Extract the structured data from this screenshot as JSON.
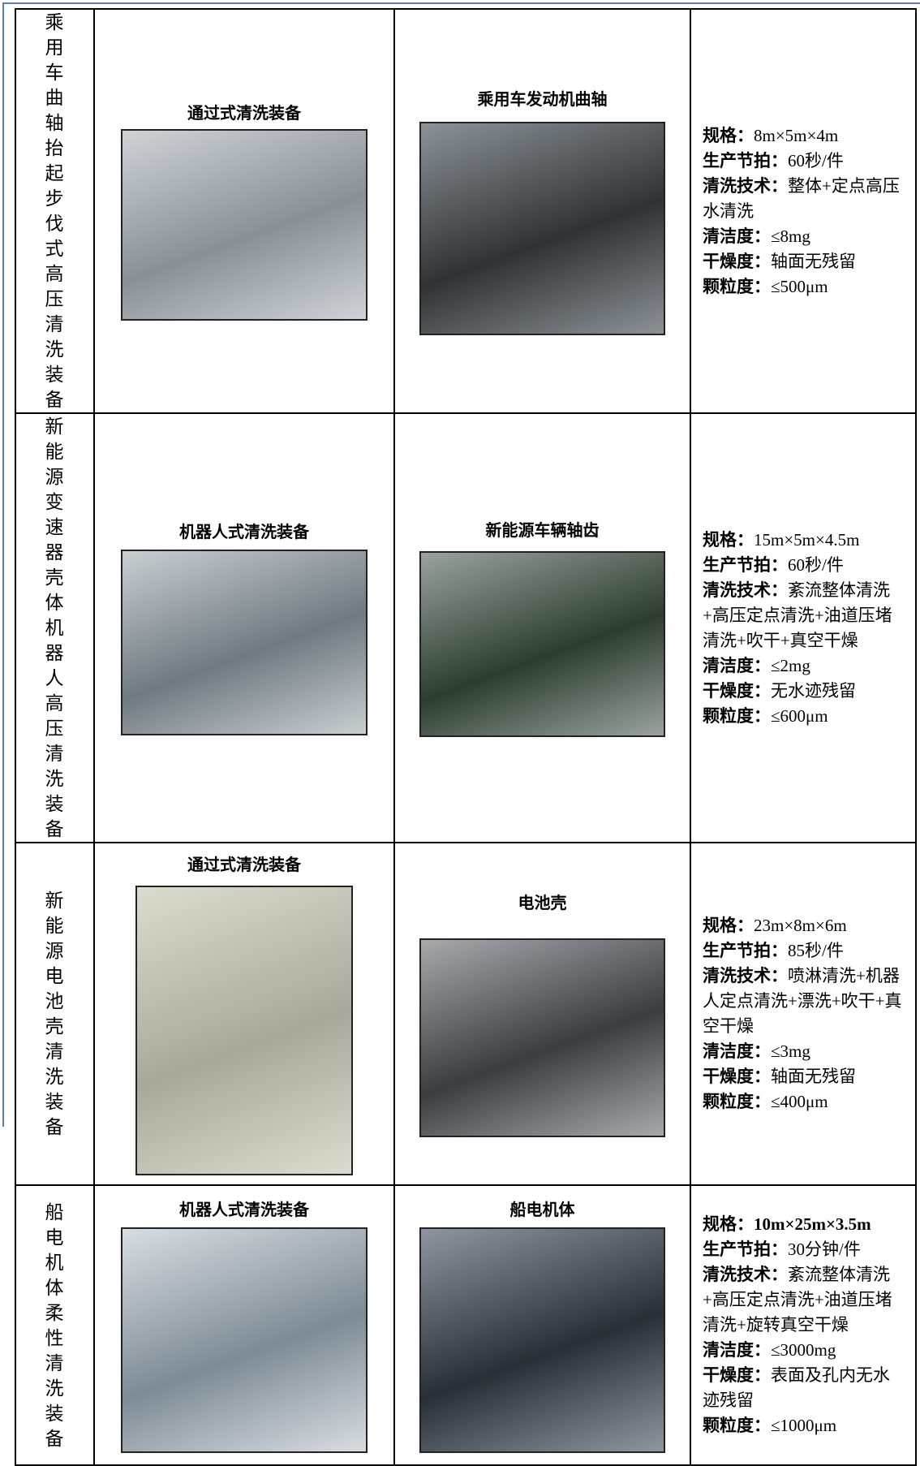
{
  "table": {
    "rows": [
      {
        "name": "乘用车曲轴抬起步伐式高压清洗装备",
        "equipment": "通过式清洗装备",
        "part": "乘用车发动机曲轴",
        "specs": [
          {
            "label": "规格：",
            "value": "8m×5m×4m"
          },
          {
            "label": "生产节拍：",
            "value": "60秒/件"
          },
          {
            "label": "清洗技术：",
            "value": "整体+定点高压水清洗"
          },
          {
            "label": "清洁度：",
            "value": "≤8mg"
          },
          {
            "label": "干燥度：",
            "value": "轴面无残留"
          },
          {
            "label": "颗粒度：",
            "value": "≤500μm"
          }
        ]
      },
      {
        "name": "新能源变速器壳体机器人高压清洗装备",
        "equipment": "机器人式清洗装备",
        "part": "新能源车辆轴齿",
        "specs": [
          {
            "label": "规格：",
            "value": "15m×5m×4.5m"
          },
          {
            "label": "生产节拍：",
            "value": "60秒/件"
          },
          {
            "label": "清洗技术：",
            "value": "紊流整体清洗+高压定点清洗+油道压堵清洗+吹干+真空干燥"
          },
          {
            "label": "清洁度：",
            "value": "≤2mg"
          },
          {
            "label": "干燥度：",
            "value": "无水迹残留"
          },
          {
            "label": "颗粒度：",
            "value": "≤600μm"
          }
        ]
      },
      {
        "name": "新能源电池壳清洗装备",
        "equipment": "通过式清洗装备",
        "part": "电池壳",
        "specs": [
          {
            "label": "规格：",
            "value": "23m×8m×6m"
          },
          {
            "label": "生产节拍：",
            "value": "85秒/件"
          },
          {
            "label": "清洗技术：",
            "value": "喷淋清洗+机器人定点清洗+漂洗+吹干+真空干燥"
          },
          {
            "label": "清洁度：",
            "value": "≤3mg"
          },
          {
            "label": "干燥度：",
            "value": "轴面无残留"
          },
          {
            "label": "颗粒度：",
            "value": "≤400μm"
          }
        ]
      },
      {
        "name": "船电机体柔性清洗装备",
        "equipment": "机器人式清洗装备",
        "part": "船电机体",
        "specs": [
          {
            "label": "规格：",
            "value": "10m×25m×3.5m"
          },
          {
            "label": "生产节拍：",
            "value": "30分钟/件"
          },
          {
            "label": "清洗技术：",
            "value": "紊流整体清洗+高压定点清洗+油道压堵清洗+旋转真空干燥"
          },
          {
            "label": "清洁度：",
            "value": "≤3000mg"
          },
          {
            "label": "干燥度：",
            "value": "表面及孔内无水迹残留"
          },
          {
            "label": "颗粒度：",
            "value": "≤1000μm"
          }
        ]
      }
    ]
  }
}
